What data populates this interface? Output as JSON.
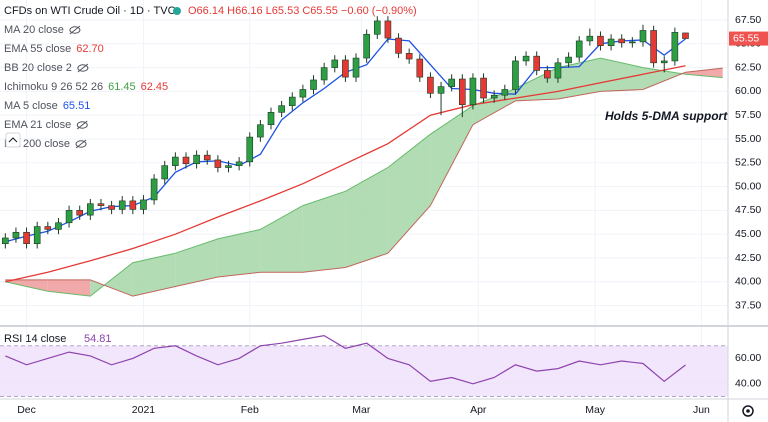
{
  "chart_data": [
    {
      "type": "candlestick",
      "title": "CFDs on WTI Crude Oil · 1D · TVC",
      "quote": "O66.14 H66.16 L65.53 C65.55 −0.60 (−0.90%)",
      "annotation": "Holds 5-DMA support",
      "legend": [
        {
          "label": "MA 20 close"
        },
        {
          "label": "EMA 55 close",
          "value_text": "62.70",
          "color": "#e53935"
        },
        {
          "label": "BB 20 close 2"
        },
        {
          "label": "Ichimoku 9 26 52 26",
          "value_text": "61.45",
          "value2_text": "62.45",
          "color": "#43a047",
          "color2": "#e53935"
        },
        {
          "label": "MA 5 close",
          "value_text": "65.51",
          "color": "#1e53e5"
        },
        {
          "label": "EMA 21 close"
        },
        {
          "label": "MA 200 close"
        }
      ],
      "xlim": [
        -1,
        136
      ],
      "xticks": [
        {
          "value": 4,
          "label": "Dec"
        },
        {
          "value": 26,
          "label": "2021"
        },
        {
          "value": 46,
          "label": "Feb"
        },
        {
          "value": 67,
          "label": "Mar"
        },
        {
          "value": 89,
          "label": "Apr"
        },
        {
          "value": 111,
          "label": "May"
        },
        {
          "value": 131,
          "label": "Jun"
        }
      ],
      "ylim": [
        35.46,
        69.6
      ],
      "yticks": [
        {
          "value": 37.5,
          "label": "37.50"
        },
        {
          "value": 40,
          "label": "40.00"
        },
        {
          "value": 42.5,
          "label": "42.50"
        },
        {
          "value": 45,
          "label": "45.00"
        },
        {
          "value": 47.5,
          "label": "47.50"
        },
        {
          "value": 50,
          "label": "50.00"
        },
        {
          "value": 52.5,
          "label": "52.50"
        },
        {
          "value": 55,
          "label": "55.00"
        },
        {
          "value": 57.5,
          "label": "57.50"
        },
        {
          "value": 60,
          "label": "60.00"
        },
        {
          "value": 62.5,
          "label": "62.50"
        },
        {
          "value": 65,
          "label": "65.00"
        },
        {
          "value": 67.5,
          "label": "67.50"
        }
      ],
      "up_color": "#2e9e44",
      "down_color": "#e53935",
      "x": [
        0,
        2,
        4,
        6,
        8,
        10,
        12,
        14,
        16,
        18,
        20,
        22,
        24,
        26,
        28,
        30,
        32,
        34,
        36,
        38,
        40,
        42,
        44,
        46,
        48,
        50,
        52,
        54,
        56,
        58,
        60,
        62,
        64,
        66,
        68,
        70,
        72,
        74,
        76,
        78,
        80,
        82,
        84,
        86,
        88,
        90,
        92,
        94,
        96,
        98,
        100,
        102,
        104,
        106,
        108,
        110,
        112,
        114,
        116,
        118,
        120,
        122,
        124,
        126,
        128
      ],
      "open": [
        44.0,
        44.6,
        45.2,
        44.0,
        45.8,
        45.5,
        46.2,
        47.5,
        47.0,
        48.2,
        48.0,
        47.6,
        48.5,
        47.6,
        48.6,
        50.8,
        52.2,
        53.1,
        52.4,
        53.3,
        52.8,
        52.0,
        52.2,
        52.6,
        55.2,
        56.5,
        57.8,
        58.5,
        59.4,
        60.2,
        61.2,
        62.5,
        63.3,
        61.5,
        63.5,
        66.0,
        67.4,
        65.6,
        64.0,
        63.4,
        61.5,
        59.8,
        60.5,
        61.3,
        58.6,
        61.4,
        59.3,
        59.6,
        60.2,
        63.2,
        63.7,
        62.2,
        61.4,
        63.0,
        63.6,
        65.3,
        65.8,
        64.8,
        65.5,
        65.1,
        65.2,
        66.4,
        63.0,
        63.2,
        66.14
      ],
      "high": [
        45.1,
        45.7,
        45.7,
        46.3,
        46.3,
        46.7,
        48.0,
        48.0,
        48.7,
        48.7,
        48.5,
        49.0,
        49.0,
        49.1,
        51.3,
        52.7,
        53.6,
        53.6,
        53.8,
        53.8,
        53.3,
        52.7,
        53.1,
        55.7,
        57.0,
        58.3,
        59.0,
        59.9,
        60.7,
        61.7,
        63.0,
        63.8,
        63.8,
        64.0,
        66.5,
        67.9,
        67.9,
        66.1,
        64.5,
        63.9,
        62.0,
        61.0,
        61.8,
        61.8,
        61.9,
        61.9,
        60.1,
        60.7,
        63.7,
        64.2,
        64.2,
        62.7,
        63.5,
        64.1,
        65.8,
        66.6,
        66.3,
        66.0,
        66.0,
        65.7,
        67.0,
        66.9,
        63.7,
        66.7,
        66.16
      ],
      "low": [
        43.5,
        44.1,
        43.5,
        43.5,
        45.0,
        45.0,
        45.7,
        46.5,
        46.5,
        47.5,
        47.1,
        47.1,
        47.1,
        47.1,
        48.1,
        50.3,
        51.7,
        51.9,
        51.9,
        52.3,
        51.5,
        51.5,
        51.7,
        52.1,
        54.7,
        56.0,
        57.3,
        58.0,
        58.9,
        59.7,
        60.7,
        62.0,
        61.0,
        61.0,
        63.0,
        65.5,
        65.1,
        63.5,
        62.9,
        61.0,
        59.3,
        57.5,
        60.0,
        57.3,
        58.1,
        58.8,
        58.8,
        59.1,
        59.7,
        62.7,
        61.7,
        60.9,
        60.9,
        62.5,
        63.1,
        64.8,
        64.3,
        64.3,
        64.6,
        64.6,
        64.7,
        62.5,
        62.0,
        62.7,
        65.53
      ],
      "close": [
        44.6,
        45.2,
        44.0,
        45.8,
        45.5,
        46.2,
        47.5,
        47.0,
        48.2,
        48.0,
        47.6,
        48.5,
        47.6,
        48.6,
        50.8,
        52.2,
        53.1,
        52.4,
        53.3,
        52.8,
        52.0,
        52.2,
        52.6,
        55.2,
        56.5,
        57.8,
        58.5,
        59.4,
        60.2,
        61.2,
        62.5,
        63.3,
        61.5,
        63.5,
        66.0,
        67.4,
        65.6,
        64.0,
        63.4,
        61.5,
        59.8,
        60.5,
        61.3,
        58.6,
        61.4,
        59.3,
        59.6,
        60.2,
        63.2,
        63.7,
        62.2,
        61.4,
        63.0,
        63.6,
        65.3,
        65.8,
        64.8,
        65.5,
        65.1,
        65.2,
        66.4,
        63.0,
        63.2,
        66.2,
        65.55
      ],
      "last_color": "#ef5350",
      "lines": [
        {
          "color": "#e53935",
          "x": [
            0,
            8,
            16,
            24,
            32,
            40,
            48,
            56,
            64,
            72,
            80,
            88,
            96,
            104,
            112,
            120,
            128
          ],
          "values": [
            40.0,
            41.0,
            42.2,
            43.5,
            45.0,
            46.8,
            48.5,
            50.3,
            52.4,
            54.5,
            57.5,
            58.6,
            59.3,
            60.0,
            60.9,
            61.8,
            62.7
          ]
        },
        {
          "color": "#1e53e5",
          "x": [
            0,
            4,
            8,
            12,
            16,
            20,
            24,
            28,
            32,
            36,
            40,
            44,
            48,
            52,
            56,
            60,
            64,
            68,
            72,
            76,
            80,
            84,
            88,
            92,
            96,
            100,
            104,
            108,
            112,
            116,
            120,
            124,
            128
          ],
          "values": [
            44.2,
            44.8,
            45.3,
            46.3,
            47.4,
            47.9,
            48.0,
            48.9,
            51.5,
            52.6,
            52.7,
            52.2,
            53.4,
            57.0,
            58.8,
            60.3,
            62.0,
            62.8,
            65.5,
            65.3,
            62.8,
            60.3,
            60.2,
            59.8,
            59.7,
            62.5,
            62.5,
            62.6,
            65.0,
            65.3,
            65.4,
            63.8,
            65.51
          ]
        }
      ],
      "cloud": {
        "up_color": "#a5d6a7",
        "down_color": "#ef9a9a",
        "a_color": "#66bb6a",
        "b_color": "#c0675c",
        "x": [
          0,
          8,
          16,
          24,
          32,
          40,
          48,
          56,
          64,
          72,
          80,
          88,
          96,
          104,
          112,
          120,
          128,
          135
        ],
        "span_a": [
          40.0,
          39.0,
          38.5,
          42.0,
          43.0,
          44.5,
          45.5,
          48.0,
          49.5,
          52.0,
          55.5,
          58.5,
          60.3,
          62.5,
          63.5,
          62.5,
          61.8,
          61.45
        ],
        "span_b": [
          40.2,
          40.2,
          40.2,
          38.5,
          39.5,
          40.5,
          41.0,
          41.0,
          41.5,
          43.0,
          48.0,
          56.5,
          59.0,
          59.2,
          60.0,
          60.2,
          62.0,
          62.45
        ]
      }
    },
    {
      "type": "line",
      "title": "RSI 14 close",
      "color": "#8e44ad",
      "band": [
        30,
        70
      ],
      "band_color": "#f1e6fc",
      "ylim": [
        28.8,
        84.8
      ],
      "yticks": [
        {
          "value": 60,
          "label": "60.00"
        },
        {
          "value": 40,
          "label": "40.00"
        }
      ],
      "x": [
        0,
        4,
        8,
        12,
        16,
        20,
        24,
        28,
        32,
        36,
        40,
        44,
        48,
        52,
        56,
        60,
        64,
        68,
        72,
        76,
        80,
        84,
        88,
        92,
        96,
        100,
        104,
        108,
        112,
        116,
        120,
        124,
        128
      ],
      "values": [
        62,
        55,
        60,
        65,
        62,
        55,
        60,
        68,
        70,
        62,
        55,
        60,
        70,
        72,
        75,
        78,
        68,
        72,
        60,
        55,
        42,
        45,
        40,
        45,
        55,
        50,
        52,
        58,
        55,
        58,
        56,
        42,
        54.81
      ]
    }
  ]
}
